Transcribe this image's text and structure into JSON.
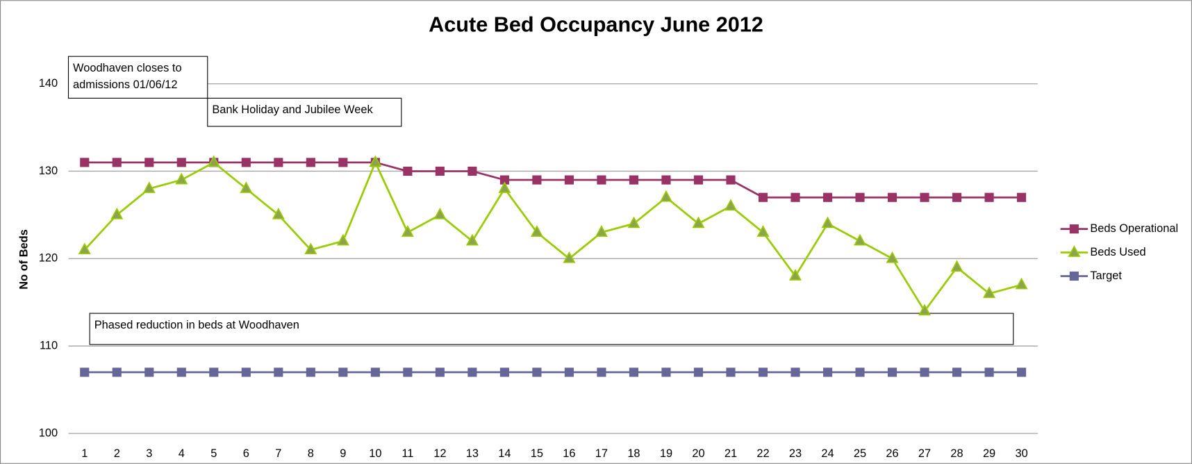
{
  "chart_data": {
    "type": "line",
    "title": "Acute Bed Occupancy June 2012",
    "y_label": "No of Beds",
    "categories": [
      "1",
      "2",
      "3",
      "4",
      "5",
      "6",
      "7",
      "8",
      "9",
      "10",
      "11",
      "12",
      "13",
      "14",
      "15",
      "16",
      "17",
      "18",
      "19",
      "20",
      "21",
      "22",
      "23",
      "24",
      "25",
      "26",
      "27",
      "28",
      "29",
      "30"
    ],
    "series": [
      {
        "name": "Beds Operational",
        "color": "#993366",
        "marker": "square",
        "values": [
          131,
          131,
          131,
          131,
          131,
          131,
          131,
          131,
          131,
          131,
          130,
          130,
          130,
          129,
          129,
          129,
          129,
          129,
          129,
          129,
          129,
          127,
          127,
          127,
          127,
          127,
          127,
          127,
          127,
          127
        ]
      },
      {
        "name": "Beds Used",
        "color": "#99cc00",
        "marker": "triangle",
        "values": [
          121,
          125,
          128,
          129,
          131,
          128,
          125,
          121,
          122,
          131,
          123,
          125,
          122,
          128,
          123,
          120,
          123,
          124,
          127,
          124,
          126,
          123,
          118,
          124,
          122,
          120,
          114,
          119,
          116,
          117
        ]
      },
      {
        "name": "Target",
        "color": "#666699",
        "marker": "square",
        "values": [
          107,
          107,
          107,
          107,
          107,
          107,
          107,
          107,
          107,
          107,
          107,
          107,
          107,
          107,
          107,
          107,
          107,
          107,
          107,
          107,
          107,
          107,
          107,
          107,
          107,
          107,
          107,
          107,
          107,
          107
        ]
      }
    ],
    "ylim": [
      100,
      145
    ],
    "yticks": [
      100,
      110,
      120,
      130,
      140
    ],
    "grid": true,
    "legend": "right",
    "annotations": [
      [
        "Woodhaven closes to",
        "admissions 01/06/12"
      ],
      [
        "Bank Holiday and Jubilee Week"
      ],
      [
        "Phased reduction in beds at Woodhaven"
      ]
    ]
  }
}
